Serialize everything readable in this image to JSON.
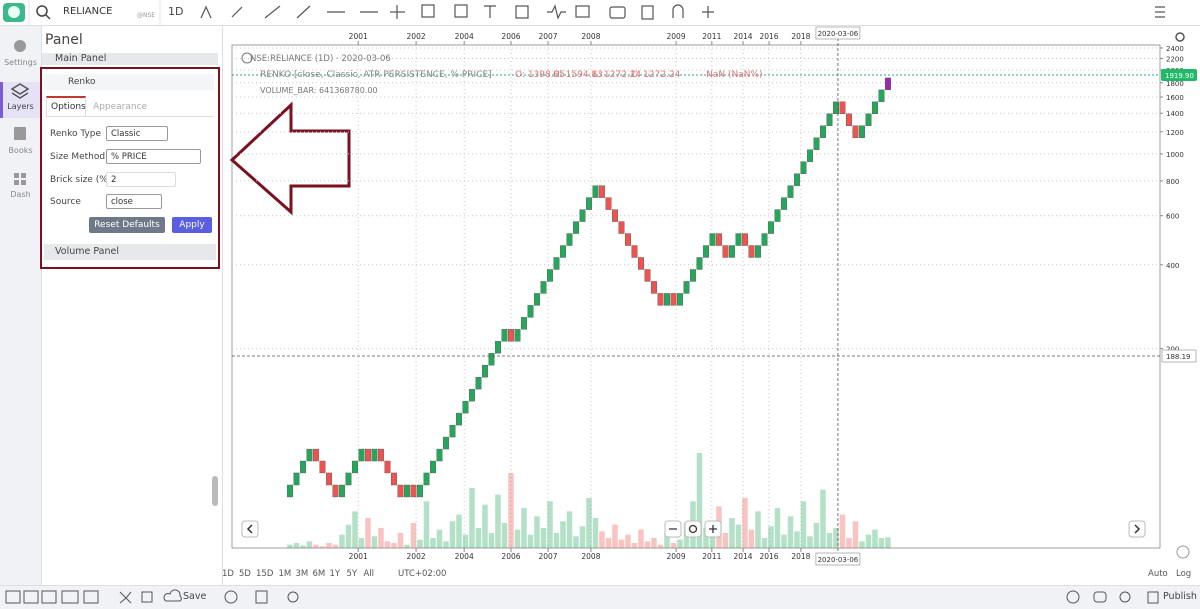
{
  "toolbar": {
    "symbol": "RELIANCE",
    "exchange": "@NSE",
    "interval": "1D"
  },
  "sidebar": {
    "items": [
      "Settings",
      "Layers",
      "Books",
      "Dash"
    ]
  },
  "panel": {
    "title": "Panel",
    "main_panel": "Main Panel",
    "layer": "Renko",
    "tabs": [
      "Options",
      "Appearance"
    ],
    "fields": [
      {
        "label": "Renko Type",
        "value": "Classic"
      },
      {
        "label": "Size Method",
        "value": "% PRICE"
      },
      {
        "label": "Brick size (%)",
        "value": "2"
      },
      {
        "label": "Source",
        "value": "close"
      }
    ],
    "buttons": [
      "Reset Defaults",
      "Apply"
    ],
    "volume_panel": "Volume Panel"
  },
  "legend": {
    "symbol_line": "NSE:RELIANCE (1D) · 2020-03-06",
    "study": "RENKO [close, Classic, ATR PERSISTENCE, % PRICE]",
    "ohlc": [
      "O: 1398.05",
      "H: 1594.83",
      "L: 1272.24",
      "C: 1272.24",
      "- NaN (NaN%)"
    ],
    "volume_line": "VOLUME_BAR: 641368780.00"
  },
  "chart_data": {
    "type": "renko",
    "y_scale": "log",
    "grid": true,
    "ylim": [
      38.5,
      2460
    ],
    "yticks": [
      200,
      400,
      600,
      800,
      1000,
      1200,
      1400,
      1600,
      1800,
      2000,
      2200,
      2400
    ],
    "xlim": [
      -8.92,
      133.85
    ],
    "xticks": [
      {
        "value": 10.5,
        "label": "2001"
      },
      {
        "value": 19.4,
        "label": "2002"
      },
      {
        "value": 26.8,
        "label": "2004"
      },
      {
        "value": 34,
        "label": "2006"
      },
      {
        "value": 39.7,
        "label": "2007"
      },
      {
        "value": 46.3,
        "label": "2008"
      },
      {
        "value": 59.4,
        "label": "2009"
      },
      {
        "value": 64.9,
        "label": "2011"
      },
      {
        "value": 69.7,
        "label": "2014"
      },
      {
        "value": 73.7,
        "label": "2016"
      },
      {
        "value": 78.6,
        "label": "2018"
      }
    ],
    "first_open": 58.7,
    "values": [
      64.8,
      71.6,
      79.0,
      87.2,
      79.0,
      71.6,
      64.8,
      58.7,
      64.8,
      71.6,
      79.0,
      87.2,
      79.0,
      87.2,
      79.0,
      71.6,
      64.8,
      58.7,
      64.8,
      58.7,
      64.8,
      71.6,
      79.0,
      87.2,
      96.3,
      106.3,
      117.4,
      129.6,
      143.1,
      157.9,
      174.4,
      192.5,
      212.5,
      234.6,
      212.5,
      234.6,
      259.0,
      286.0,
      315.7,
      348.6,
      384.8,
      424.9,
      469.0,
      517.8,
      571.7,
      631.1,
      696.8,
      769.2,
      696.8,
      631.1,
      571.7,
      517.8,
      469.0,
      424.9,
      384.8,
      348.6,
      315.7,
      286.0,
      315.7,
      286.0,
      315.7,
      348.6,
      384.8,
      424.9,
      469.0,
      517.8,
      469.0,
      424.9,
      469.0,
      517.8,
      469.0,
      424.9,
      469.0,
      517.8,
      571.7,
      631.1,
      696.8,
      769.2,
      849.2,
      937.6,
      1035,
      1143,
      1262,
      1393,
      1538,
      1393,
      1262,
      1143,
      1262,
      1393,
      1538,
      1698,
      1874
    ],
    "up_color": "#26a65b",
    "down_color": "#ef5350",
    "last_color": "#9c27b0",
    "last_price": {
      "value": 1919.9,
      "label": "1919.90"
    },
    "crosshair": {
      "x": 84.3,
      "x_label": "2020-03-06",
      "y": 188.19
    },
    "volume": {
      "ylim": [
        0,
        6000000000
      ],
      "values": [
        200000000.0,
        300000000.0,
        150000000.0,
        400000000.0,
        200000000.0,
        100000000.0,
        300000000.0,
        200000000.0,
        800000000.0,
        1400000000.0,
        2200000000.0,
        600000000.0,
        1800000000.0,
        700000000.0,
        1200000000.0,
        400000000.0,
        300000000.0,
        900000000.0,
        200000000.0,
        1500000000.0,
        500000000.0,
        2800000000.0,
        600000000.0,
        1100000000.0,
        400000000.0,
        1600000000.0,
        2000000000.0,
        800000000.0,
        3600000000.0,
        1200000000.0,
        2600000000.0,
        900000000.0,
        3200000000.0,
        1500000000.0,
        4500000000.0,
        1100000000.0,
        2400000000.0,
        800000000.0,
        1900000000.0,
        1200000000.0,
        2800000000.0,
        900000000.0,
        1600000000.0,
        2200000000.0,
        700000000.0,
        1300000000.0,
        3000000000.0,
        1800000000.0,
        1000000000.0,
        600000000.0,
        1400000000.0,
        500000000.0,
        800000000.0,
        300000000.0,
        1100000000.0,
        400000000.0,
        600000000.0,
        200000000.0,
        900000000.0,
        300000000.0,
        500000000.0,
        1500000000.0,
        2800000000.0,
        5700000000.0,
        1200000000.0,
        700000000.0,
        2500000000.0,
        900000000.0,
        1800000000.0,
        1400000000.0,
        3000000000.0,
        1100000000.0,
        2200000000.0,
        600000000.0,
        1300000000.0,
        2400000000.0,
        800000000.0,
        1900000000.0,
        1000000000.0,
        2800000000.0,
        700000000.0,
        1500000000.0,
        3500000000.0,
        900000000.0,
        1200000000.0,
        2000000000.0,
        600000000.0,
        1600000000.0,
        400000000.0,
        800000000.0,
        1100000000.0,
        600000000.0,
        641368780
      ]
    }
  },
  "range_bar": {
    "ranges": [
      "1D",
      "5D",
      "15D",
      "1M",
      "3M",
      "6M",
      "1Y",
      "5Y",
      "All"
    ],
    "timezone": "UTC+02:00",
    "auto": "Auto",
    "log": "Log"
  },
  "footer": {
    "save": "Save",
    "publish": "Publish"
  }
}
